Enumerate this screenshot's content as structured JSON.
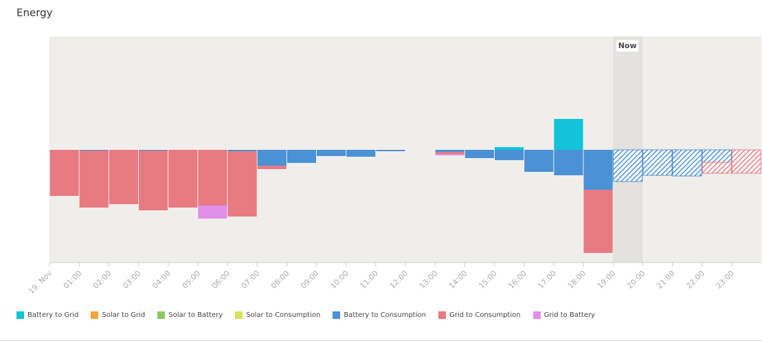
{
  "chart_data": {
    "type": "bar",
    "stacked": true,
    "title": "Energy",
    "categories": [
      "19. Nov",
      "01:00",
      "02:00",
      "03:00",
      "04:00",
      "05:00",
      "06:00",
      "07:00",
      "08:00",
      "09:00",
      "10:00",
      "11:00",
      "12:00",
      "13:00",
      "14:00",
      "15:00",
      "16:00",
      "17:00",
      "18:00",
      "19:00",
      "20:00",
      "21:00",
      "22:00",
      "23:00"
    ],
    "ylim": [
      -1.64,
      1.65
    ],
    "now": {
      "text": "Now",
      "category": "19:00"
    },
    "forecast_hatched": true,
    "series": [
      {
        "name": "Battery to Grid",
        "color": "#12c3d9",
        "values": [
          0,
          0,
          0,
          0,
          0,
          0,
          0,
          0,
          0,
          0,
          0,
          0,
          0,
          0,
          0,
          0.04,
          0,
          0.45,
          0,
          0,
          0,
          0,
          0,
          0
        ]
      },
      {
        "name": "Solar to Grid",
        "color": "#f4a53c",
        "values": [
          0,
          0,
          0,
          0,
          0,
          0,
          0,
          0,
          0,
          0,
          0,
          0,
          0,
          0,
          0,
          0,
          0,
          0,
          0,
          0,
          0,
          0,
          0,
          0
        ]
      },
      {
        "name": "Solar to Battery",
        "color": "#8dc868",
        "values": [
          0,
          0,
          0,
          0,
          0,
          0,
          0,
          0,
          0,
          0,
          0,
          0,
          0,
          0,
          0,
          0,
          0,
          0,
          0,
          0,
          0,
          0,
          0,
          0
        ]
      },
      {
        "name": "Solar to Consumption",
        "color": "#d5e25a",
        "values": [
          0,
          0,
          0,
          0,
          0,
          0,
          0,
          0,
          0,
          0,
          0,
          0,
          0,
          0,
          0,
          0,
          0,
          0,
          0,
          0,
          0,
          0,
          0,
          0
        ]
      },
      {
        "name": "Battery to Consumption",
        "color": "#4a91d5",
        "values": [
          0,
          -0.01,
          0,
          -0.01,
          0,
          0,
          -0.02,
          -0.23,
          -0.19,
          -0.09,
          -0.1,
          -0.02,
          0,
          -0.03,
          -0.12,
          -0.15,
          -0.32,
          -0.37,
          -0.58,
          -0.46,
          -0.37,
          -0.38,
          -0.18,
          0
        ]
      },
      {
        "name": "Grid to Consumption",
        "color": "#e87a82",
        "values": [
          -0.67,
          -0.83,
          -0.79,
          -0.87,
          -0.84,
          -0.81,
          -0.95,
          -0.05,
          0,
          0,
          0,
          0,
          0,
          -0.03,
          0,
          0,
          0,
          0,
          -0.92,
          0,
          0,
          0,
          -0.16,
          -0.34
        ]
      },
      {
        "name": "Grid to Battery",
        "color": "#e08fe8",
        "values": [
          0,
          0,
          0,
          0,
          0,
          -0.19,
          0,
          0,
          0,
          0,
          0,
          0,
          0,
          -0.02,
          0,
          0,
          0,
          0,
          0,
          0,
          0,
          0,
          0,
          0
        ]
      }
    ]
  }
}
